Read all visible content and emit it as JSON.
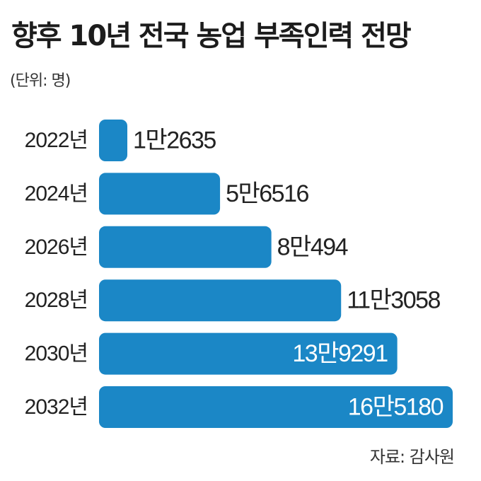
{
  "title": "향후 10년 전국 농업 부족인력 전망",
  "subtitle": "(단위: 명)",
  "source": "자료: 감사원",
  "colors": {
    "bar": "#1b87c6",
    "text_dark": "#222222",
    "text_light": "#ffffff"
  },
  "chart_data": {
    "type": "bar",
    "orientation": "horizontal",
    "categories": [
      "2022년",
      "2024년",
      "2026년",
      "2028년",
      "2030년",
      "2032년"
    ],
    "values": [
      12635,
      56516,
      80494,
      113058,
      139291,
      165180
    ],
    "value_labels": [
      "1만2635",
      "5만6516",
      "8만494",
      "11만3058",
      "13만9291",
      "16만5180"
    ],
    "label_inside": [
      false,
      false,
      false,
      false,
      true,
      true
    ],
    "unit": "명",
    "grid": false,
    "legend": "none"
  }
}
